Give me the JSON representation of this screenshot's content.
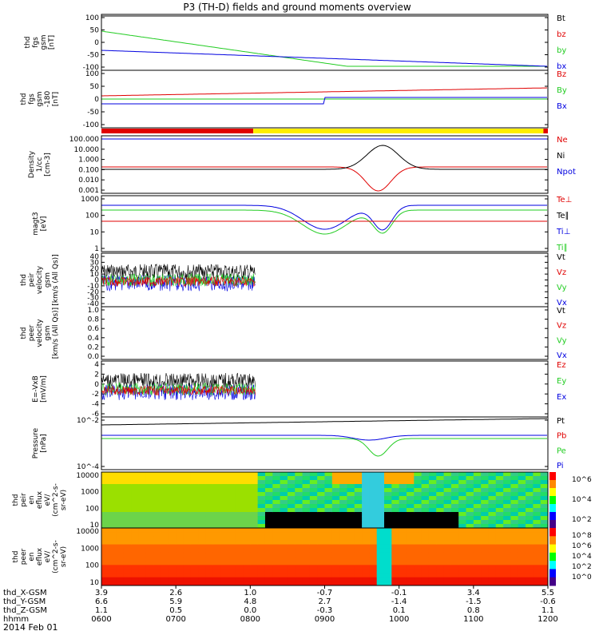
{
  "title": "P3 (TH-D) fields and ground moments overview",
  "date": "2014 Feb 01",
  "colors": {
    "black": "#000000",
    "red": "#e00000",
    "green": "#22cc22",
    "blue": "#0000e0",
    "yellow": "#ffee00"
  },
  "chart_data": {
    "type": "line",
    "panels": [
      {
        "id": "fgs-gsm",
        "ylabel": [
          "thd",
          "fgs",
          "gsm",
          "[nT]"
        ],
        "ylim": [
          -100,
          100
        ],
        "ticks": [
          "100",
          "50",
          "0",
          "-50",
          "-100"
        ],
        "series": [
          {
            "name": "Bt",
            "color": "black"
          },
          {
            "name": "bz",
            "color": "red"
          },
          {
            "name": "by",
            "color": "green"
          },
          {
            "name": "bx",
            "color": "blue"
          }
        ]
      },
      {
        "id": "fgs-gsm-2",
        "ylabel": [
          "thd",
          "fgs",
          "gsm",
          "-180",
          "[nT]"
        ],
        "ylim": [
          -120,
          100
        ],
        "ticks": [
          "100",
          "50",
          "0",
          "-50",
          "-100"
        ],
        "series": [
          {
            "name": "Bz",
            "color": "red"
          },
          {
            "name": "By",
            "color": "green"
          },
          {
            "name": "Bx",
            "color": "blue"
          }
        ]
      },
      {
        "id": "density",
        "ylabel": [
          "Density",
          "1/cc",
          "[cm-3]"
        ],
        "ylim": [
          0.001,
          100
        ],
        "log": true,
        "ticks": [
          "100.000",
          "10.000",
          "1.000",
          "0.100",
          "0.010",
          "0.001"
        ],
        "series": [
          {
            "name": "Ne",
            "color": "red"
          },
          {
            "name": "Ni",
            "color": "black"
          },
          {
            "name": "Npot",
            "color": "blue"
          }
        ]
      },
      {
        "id": "temperature",
        "ylabel": [
          "magt3",
          "[eV]"
        ],
        "ylim": [
          1,
          5000
        ],
        "log": true,
        "ticks": [
          "1000",
          "100",
          "10",
          "1"
        ],
        "series": [
          {
            "name": "Te⊥",
            "color": "red"
          },
          {
            "name": "Te∥",
            "color": "black"
          },
          {
            "name": "Ti⊥",
            "color": "blue"
          },
          {
            "name": "Ti∥",
            "color": "green"
          }
        ]
      },
      {
        "id": "peir-velocity",
        "ylabel": [
          "thd",
          "peir",
          "velocity",
          "gsm",
          "[km/s (All Qs)]"
        ],
        "ylim": [
          -40,
          40
        ],
        "ticks": [
          "40",
          "30",
          "20",
          "10",
          "0",
          "-10",
          "-20",
          "-30",
          "-40"
        ],
        "series": [
          {
            "name": "Vt",
            "color": "black"
          },
          {
            "name": "Vz",
            "color": "red"
          },
          {
            "name": "Vy",
            "color": "green"
          },
          {
            "name": "Vx",
            "color": "blue"
          }
        ]
      },
      {
        "id": "peer-velocity",
        "ylabel": [
          "thd",
          "peer",
          "velocity",
          "gsm",
          "[km/s (All Qs)]"
        ],
        "ylim": [
          0,
          1
        ],
        "ticks": [
          "1.0",
          "0.8",
          "0.6",
          "0.4",
          "0.2",
          "0.0"
        ],
        "series": [
          {
            "name": "Vt",
            "color": "black"
          },
          {
            "name": "Vz",
            "color": "red"
          },
          {
            "name": "Vy",
            "color": "green"
          },
          {
            "name": "Vx",
            "color": "blue"
          }
        ]
      },
      {
        "id": "efield",
        "ylabel": [
          "E=-VxB",
          "[mV/m]"
        ],
        "ylim": [
          -6,
          4
        ],
        "ticks": [
          "4",
          "2",
          "0",
          "-2",
          "-4",
          "-6"
        ],
        "series": [
          {
            "name": "Ez",
            "color": "red"
          },
          {
            "name": "Ey",
            "color": "green"
          },
          {
            "name": "Ex",
            "color": "blue"
          }
        ]
      },
      {
        "id": "pressure",
        "ylabel": [
          "Pressure",
          "[nPa]"
        ],
        "ylim": [
          1e-05,
          1
        ],
        "log": true,
        "ticks": [
          "10^-2",
          "10^-4"
        ],
        "series": [
          {
            "name": "Pt",
            "color": "black"
          },
          {
            "name": "Pb",
            "color": "red"
          },
          {
            "name": "Pe",
            "color": "green"
          },
          {
            "name": "Pi",
            "color": "blue"
          }
        ]
      },
      {
        "id": "peir-spec",
        "type": "heatmap",
        "ylabel": [
          "thd",
          "peir",
          "en",
          "eflux",
          "eV/",
          "(cm^2-s-",
          "sr-eV)"
        ],
        "ticks": [
          "10000",
          "1000",
          "100",
          "10"
        ],
        "colorbar": [
          "10^6",
          "10^4",
          "10^2"
        ]
      },
      {
        "id": "peer-spec",
        "type": "heatmap",
        "ylabel": [
          "thd",
          "peer",
          "en",
          "eflux",
          "eV/",
          "(cm^2-s-",
          "sr-eV)"
        ],
        "ticks": [
          "10000",
          "1000",
          "100",
          "10"
        ],
        "colorbar": [
          "10^8",
          "10^6",
          "10^4",
          "10^2",
          "10^0"
        ]
      }
    ],
    "x_axis": {
      "row_labels": [
        "thd_X-GSM",
        "thd_Y-GSM",
        "thd_Z-GSM",
        "hhmm"
      ],
      "ticks": [
        {
          "hhmm": "0600",
          "x": "3.9",
          "y": "6.6",
          "z": "1.1"
        },
        {
          "hhmm": "0700",
          "x": "2.6",
          "y": "5.9",
          "z": "0.5"
        },
        {
          "hhmm": "0800",
          "x": "1.0",
          "y": "4.8",
          "z": "0.0"
        },
        {
          "hhmm": "0900",
          "x": "-0.7",
          "y": "2.7",
          "z": "-0.3"
        },
        {
          "hhmm": "1000",
          "x": "-0.1",
          "y": "-1.4",
          "z": "0.1"
        },
        {
          "hhmm": "1100",
          "x": "3.4",
          "y": "-1.5",
          "z": "0.8"
        },
        {
          "hhmm": "1200",
          "x": "5.5",
          "y": "-0.6",
          "z": "1.1"
        }
      ]
    }
  }
}
